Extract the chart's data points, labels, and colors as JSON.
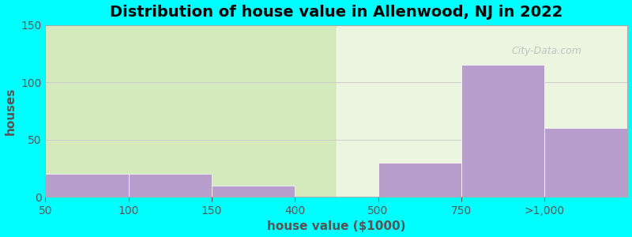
{
  "title": "Distribution of house value in Allenwood, NJ in 2022",
  "xlabel": "house value ($1000)",
  "ylabel": "houses",
  "background_outer": "#00FFFF",
  "background_inner": "#d4eabc",
  "bar_color": "#b89ecc",
  "ylim": [
    0,
    150
  ],
  "yticks": [
    0,
    50,
    100,
    150
  ],
  "xtick_labels": [
    "50",
    "100",
    "150",
    "400",
    "500",
    "750",
    ">1,000"
  ],
  "xtick_positions": [
    0,
    1,
    2,
    3,
    4,
    5,
    6
  ],
  "bar_lefts": [
    0,
    1,
    2,
    4,
    5,
    6
  ],
  "bar_widths": [
    1,
    1,
    1,
    1,
    1,
    1
  ],
  "bar_heights": [
    20,
    20,
    10,
    30,
    115,
    60
  ],
  "title_fontsize": 14,
  "axis_label_fontsize": 11,
  "tick_fontsize": 10,
  "grid_color": "#cccccc",
  "text_color": "#555555",
  "watermark": "City-Data.com"
}
